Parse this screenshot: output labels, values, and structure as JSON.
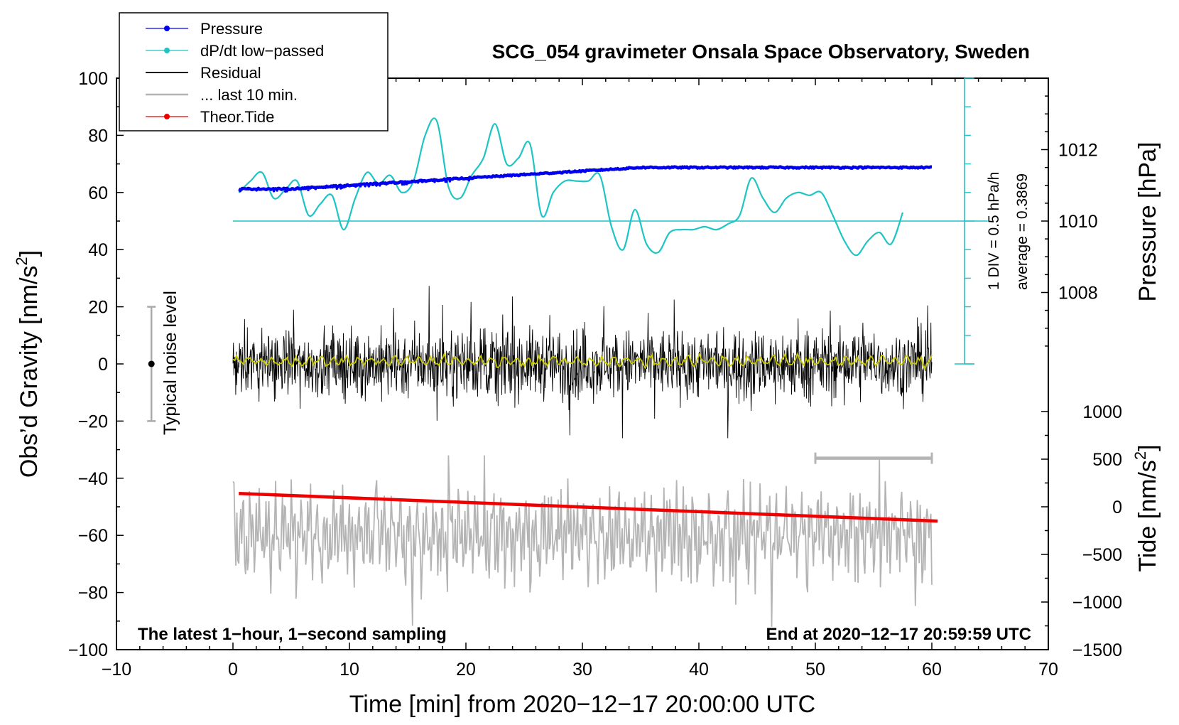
{
  "chart_data": {
    "type": "line",
    "title": "SCG_054 gravimeter Onsala Space Observatory, Sweden",
    "xlabel": "Time [min] from 2020−12−17 20:00:00 UTC",
    "ylabel_left_main": "Obs’d Gravity [nm/s",
    "ylabel_left_sup": "2",
    "ylabel_left_end": "]",
    "ylabel_right_pressure": "Pressure [hPa]",
    "ylabel_right_tide_main": "Tide [nm/s",
    "ylabel_right_tide_sup": "2",
    "ylabel_right_tide_end": "]",
    "xlim": [
      -10,
      70
    ],
    "ylim_gravity": [
      -100,
      100
    ],
    "ylim_pressure_axis": [
      1006,
      1014
    ],
    "ylim_tide_axis": [
      -1500,
      1500
    ],
    "x_ticks": [
      "−10",
      "0",
      "10",
      "20",
      "30",
      "40",
      "50",
      "60",
      "70"
    ],
    "y_ticks_left": [
      "100",
      "80",
      "60",
      "40",
      "20",
      "0",
      "−20",
      "−40",
      "−60",
      "−80",
      "−100"
    ],
    "y_ticks_pressure": [
      "1012",
      "1010",
      "1008"
    ],
    "y_ticks_tide": [
      "1000",
      "500",
      "0",
      "−500",
      "−1000",
      "−1500"
    ],
    "legend": {
      "position": "top-left",
      "entries": [
        "Pressure",
        "dP/dt low−passed",
        "Residual",
        "... last 10 min.",
        "Theor.Tide"
      ]
    },
    "annotations": {
      "noise": "Typical noise level",
      "div": "1 DIV = 0.5 hPa/h",
      "average": "average = 0.3869",
      "left_footer": "The latest 1−hour, 1−second sampling",
      "right_footer": "End at 2020−12−17 20:59:59 UTC"
    },
    "series": [
      {
        "name": "Pressure",
        "color": "#0000ee",
        "axis": "pressure",
        "x": [
          0.5,
          5,
          10,
          15,
          20,
          25,
          30,
          35,
          40,
          45,
          50,
          55,
          60
        ],
        "values": [
          1010.9,
          1010.9,
          1011.0,
          1011.1,
          1011.2,
          1011.3,
          1011.4,
          1011.5,
          1011.5,
          1011.5,
          1011.5,
          1011.5,
          1011.5
        ]
      },
      {
        "name": "dP/dt low−passed",
        "color": "#1fc4c4",
        "axis": "gravity",
        "x": [
          0.5,
          1.5,
          2.5,
          3.5,
          4.5,
          5.5,
          6.5,
          7.5,
          8.5,
          9.5,
          10.5,
          11.5,
          12.5,
          13.5,
          14.5,
          15.5,
          16.5,
          17.5,
          18.5,
          19.5,
          20.5,
          21.5,
          22.5,
          23.5,
          24.5,
          25.5,
          26.5,
          27.5,
          28.5,
          29.5,
          30.5,
          31.5,
          32.5,
          33.5,
          34.5,
          35.5,
          36.5,
          37.5,
          38.5,
          39.5,
          40.5,
          41.5,
          42.5,
          43.5,
          44.5,
          45.5,
          46.5,
          47.5,
          48.5,
          49.5,
          50.5,
          51.5,
          52.5,
          53.5,
          54.5,
          55.5,
          56.5,
          57.5
        ],
        "values": [
          60,
          64,
          67,
          58,
          61,
          64,
          52,
          56,
          59,
          47,
          58,
          67,
          63,
          66,
          60,
          64,
          80,
          85,
          62,
          58,
          66,
          72,
          84,
          70,
          72,
          77,
          52,
          60,
          64,
          64,
          64,
          66,
          48,
          40,
          54,
          42,
          39,
          46,
          47,
          47,
          48,
          47,
          49,
          52,
          65,
          58,
          53,
          58,
          60,
          59,
          60,
          52,
          43,
          38,
          43,
          46,
          42,
          53
        ]
      },
      {
        "name": "Residual",
        "color": "#000000",
        "axis": "gravity",
        "x": [
          0,
          60
        ],
        "band": [
          -26,
          30
        ]
      },
      {
        "name": "Residual smoothed",
        "color": "#c8c800",
        "axis": "gravity",
        "x": [
          0,
          60
        ],
        "values": [
          1,
          1
        ]
      },
      {
        "name": "... last 10 min.",
        "color": "#b4b4b4",
        "axis": "gravity",
        "x": [
          0,
          60
        ],
        "band": [
          -92,
          -32
        ]
      },
      {
        "name": "Theor.Tide",
        "color": "#ee0000",
        "axis": "tide",
        "x": [
          0.5,
          60.5
        ],
        "values": [
          140,
          -150
        ]
      }
    ],
    "noise_bar": {
      "x": -7,
      "low": -20,
      "high": 20
    },
    "ten_min_bar": {
      "x_start": 50,
      "x_end": 60,
      "y": -33
    }
  }
}
